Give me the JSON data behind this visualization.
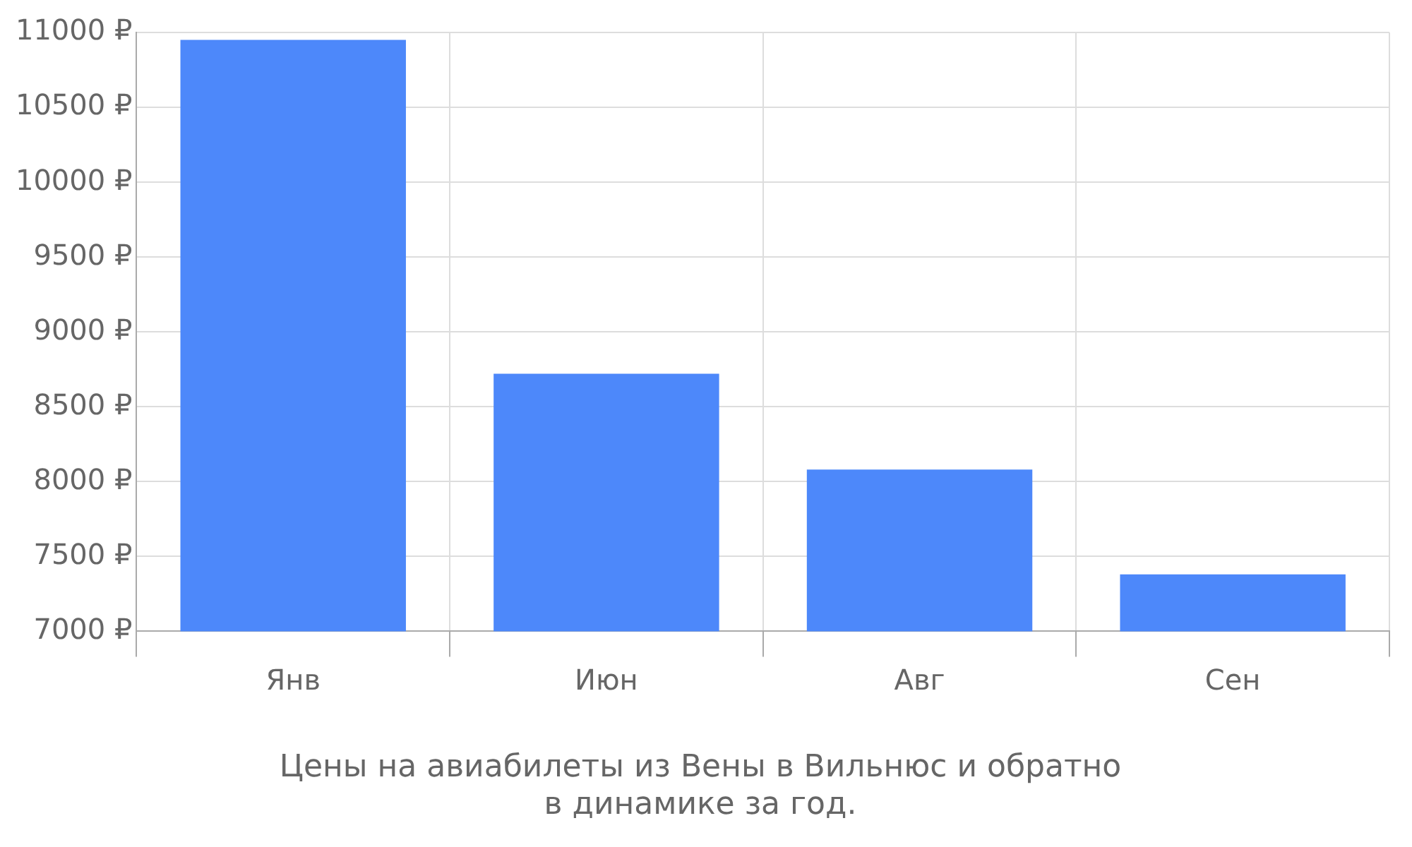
{
  "chart_data": {
    "type": "bar",
    "title": [
      "Цены на авиабилеты из Вены в Вильнюс и обратно",
      "в динамике за год."
    ],
    "categories": [
      "Янв",
      "Июн",
      "Авг",
      "Сен"
    ],
    "values": [
      10950,
      8720,
      8080,
      7380
    ],
    "color": "#4d88fa",
    "ylim": [
      7000,
      11000
    ],
    "yticks": [
      {
        "value": 7000,
        "label": "7000 ₽"
      },
      {
        "value": 7500,
        "label": "7500 ₽"
      },
      {
        "value": 8000,
        "label": "8000 ₽"
      },
      {
        "value": 8500,
        "label": "8500 ₽"
      },
      {
        "value": 9000,
        "label": "9000 ₽"
      },
      {
        "value": 9500,
        "label": "9500 ₽"
      },
      {
        "value": 10000,
        "label": "10000 ₽"
      },
      {
        "value": 10500,
        "label": "10500 ₽"
      },
      {
        "value": 11000,
        "label": "11000 ₽"
      }
    ],
    "grid": true
  }
}
